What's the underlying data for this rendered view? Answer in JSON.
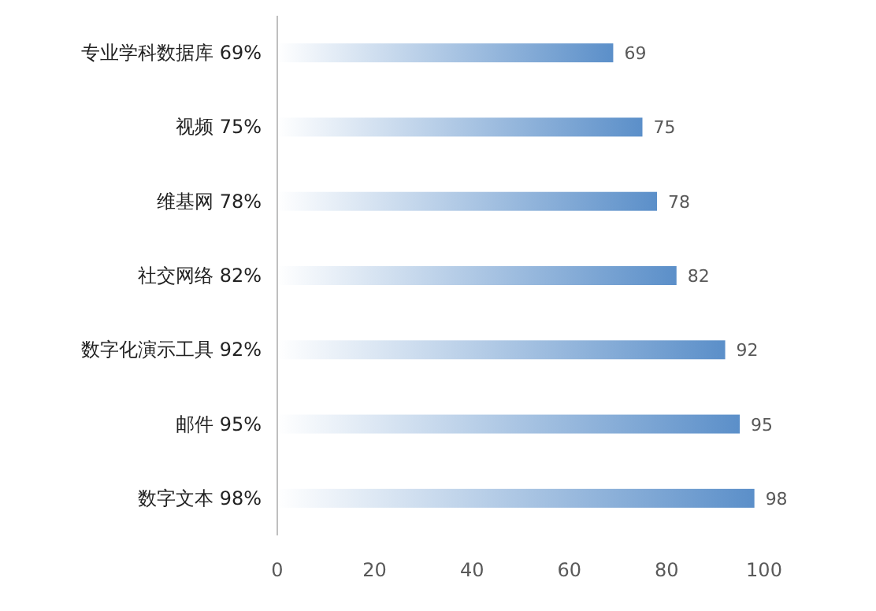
{
  "chart_data": {
    "type": "bar",
    "orientation": "horizontal",
    "categories": [
      "专业学科数据库 69%",
      "视频 75%",
      "维基网 78%",
      "社交网络 82%",
      "数字化演示工具 92%",
      "邮件 95%",
      "数字文本 98%"
    ],
    "values": [
      69,
      75,
      78,
      82,
      92,
      95,
      98
    ],
    "color": "#5b8fc9",
    "xlim": [
      0,
      100
    ],
    "xticks": [
      0,
      20,
      40,
      60,
      80,
      100
    ],
    "data_labels": true
  }
}
